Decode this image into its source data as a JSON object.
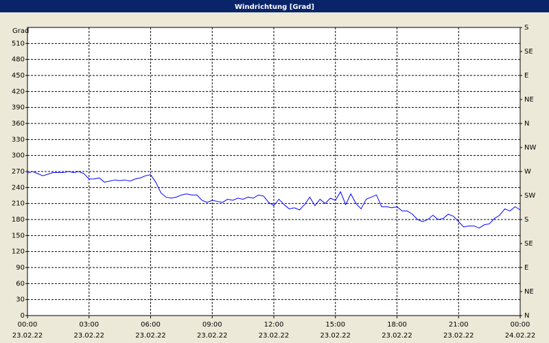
{
  "chart_data": {
    "type": "line",
    "title": "Windrichtung [Grad]",
    "ylabel": "Grad",
    "x": [
      0,
      0.25,
      0.5,
      0.75,
      1,
      1.25,
      1.5,
      1.75,
      2,
      2.25,
      2.5,
      2.75,
      3,
      3.25,
      3.5,
      3.75,
      4,
      4.25,
      4.5,
      4.75,
      5,
      5.25,
      5.5,
      5.75,
      6,
      6.25,
      6.5,
      6.75,
      7,
      7.25,
      7.5,
      7.75,
      8,
      8.25,
      8.5,
      8.75,
      9,
      9.25,
      9.5,
      9.75,
      10,
      10.25,
      10.5,
      10.75,
      11,
      11.25,
      11.5,
      11.75,
      12,
      12.25,
      12.5,
      12.75,
      13,
      13.25,
      13.5,
      13.75,
      14,
      14.25,
      14.5,
      14.75,
      15,
      15.25,
      15.5,
      15.75,
      16,
      16.25,
      16.5,
      16.75,
      17,
      17.25,
      17.5,
      17.75,
      18,
      18.25,
      18.5,
      18.75,
      19,
      19.25,
      19.5,
      19.75,
      20,
      20.25,
      20.5,
      20.75,
      21,
      21.25,
      21.5,
      21.75,
      22,
      22.25,
      22.5,
      22.75,
      23,
      23.25,
      23.5,
      23.75,
      24
    ],
    "series": [
      {
        "name": "Windrichtung",
        "color": "#0000ff",
        "values": [
          267,
          270,
          266,
          262,
          265,
          268,
          268,
          268,
          270,
          268,
          270,
          266,
          256,
          256,
          258,
          250,
          252,
          254,
          253,
          254,
          252,
          256,
          258,
          262,
          264,
          250,
          230,
          222,
          220,
          222,
          226,
          228,
          226,
          226,
          216,
          212,
          216,
          214,
          212,
          218,
          216,
          220,
          218,
          222,
          220,
          226,
          224,
          212,
          206,
          218,
          208,
          200,
          202,
          198,
          208,
          222,
          206,
          218,
          210,
          220,
          216,
          232,
          208,
          228,
          210,
          200,
          218,
          222,
          226,
          204,
          204,
          202,
          204,
          196,
          196,
          190,
          180,
          176,
          180,
          188,
          180,
          182,
          190,
          186,
          176,
          166,
          168,
          168,
          164,
          170,
          172,
          182,
          188,
          200,
          196,
          204,
          198
        ]
      }
    ],
    "xlim": [
      0,
      24
    ],
    "xticks": [
      {
        "value": 0,
        "label": "00:00"
      },
      {
        "value": 3,
        "label": "03:00"
      },
      {
        "value": 6,
        "label": "06:00"
      },
      {
        "value": 9,
        "label": "09:00"
      },
      {
        "value": 12,
        "label": "12:00"
      },
      {
        "value": 15,
        "label": "15:00"
      },
      {
        "value": 18,
        "label": "18:00"
      },
      {
        "value": 21,
        "label": "21:00"
      },
      {
        "value": 24,
        "label": "00:00"
      }
    ],
    "xtick_dates": [
      "23.02.22",
      "23.02.22",
      "23.02.22",
      "23.02.22",
      "23.02.22",
      "23.02.22",
      "23.02.22",
      "23.02.22",
      "24.02.22"
    ],
    "ylim": [
      0,
      540
    ],
    "yticks": [
      0,
      30,
      60,
      90,
      120,
      150,
      180,
      210,
      240,
      270,
      300,
      330,
      360,
      390,
      420,
      450,
      480,
      510
    ],
    "y2lim": [
      0,
      540
    ],
    "y2ticks": [
      {
        "value": 0,
        "label": "N"
      },
      {
        "value": 45,
        "label": "NE"
      },
      {
        "value": 90,
        "label": "E"
      },
      {
        "value": 135,
        "label": "SE"
      },
      {
        "value": 180,
        "label": "S"
      },
      {
        "value": 225,
        "label": "SW"
      },
      {
        "value": 270,
        "label": "W"
      },
      {
        "value": 315,
        "label": "NW"
      },
      {
        "value": 360,
        "label": "N"
      },
      {
        "value": 405,
        "label": "NE"
      },
      {
        "value": 450,
        "label": "E"
      },
      {
        "value": 495,
        "label": "SE"
      },
      {
        "value": 540,
        "label": "S"
      }
    ],
    "grid": true
  }
}
